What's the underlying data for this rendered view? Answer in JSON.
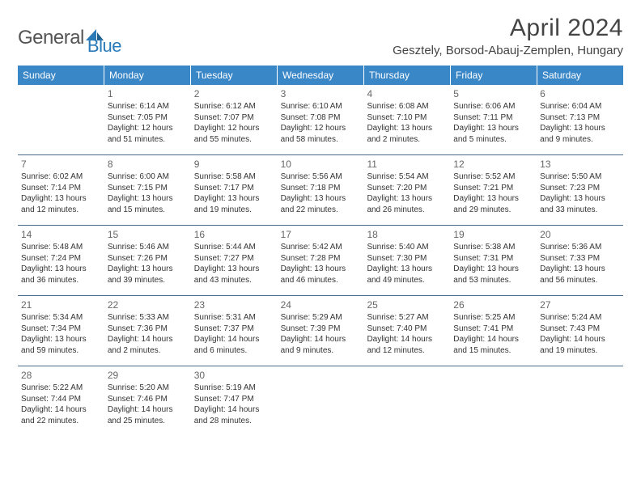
{
  "logo": {
    "part1": "General",
    "part2": "Blue"
  },
  "header": {
    "title": "April 2024",
    "location": "Gesztely, Borsod-Abauj-Zemplen, Hungary"
  },
  "colors": {
    "header_bg": "#3a87c8",
    "header_fg": "#ffffff",
    "rule": "#4a6a8a",
    "logo_blue": "#2a7ab8",
    "logo_gray": "#555555",
    "text": "#333333"
  },
  "dayNames": [
    "Sunday",
    "Monday",
    "Tuesday",
    "Wednesday",
    "Thursday",
    "Friday",
    "Saturday"
  ],
  "weeks": [
    [
      null,
      {
        "n": "1",
        "sr": "Sunrise: 6:14 AM",
        "ss": "Sunset: 7:05 PM",
        "d1": "Daylight: 12 hours",
        "d2": "and 51 minutes."
      },
      {
        "n": "2",
        "sr": "Sunrise: 6:12 AM",
        "ss": "Sunset: 7:07 PM",
        "d1": "Daylight: 12 hours",
        "d2": "and 55 minutes."
      },
      {
        "n": "3",
        "sr": "Sunrise: 6:10 AM",
        "ss": "Sunset: 7:08 PM",
        "d1": "Daylight: 12 hours",
        "d2": "and 58 minutes."
      },
      {
        "n": "4",
        "sr": "Sunrise: 6:08 AM",
        "ss": "Sunset: 7:10 PM",
        "d1": "Daylight: 13 hours",
        "d2": "and 2 minutes."
      },
      {
        "n": "5",
        "sr": "Sunrise: 6:06 AM",
        "ss": "Sunset: 7:11 PM",
        "d1": "Daylight: 13 hours",
        "d2": "and 5 minutes."
      },
      {
        "n": "6",
        "sr": "Sunrise: 6:04 AM",
        "ss": "Sunset: 7:13 PM",
        "d1": "Daylight: 13 hours",
        "d2": "and 9 minutes."
      }
    ],
    [
      {
        "n": "7",
        "sr": "Sunrise: 6:02 AM",
        "ss": "Sunset: 7:14 PM",
        "d1": "Daylight: 13 hours",
        "d2": "and 12 minutes."
      },
      {
        "n": "8",
        "sr": "Sunrise: 6:00 AM",
        "ss": "Sunset: 7:15 PM",
        "d1": "Daylight: 13 hours",
        "d2": "and 15 minutes."
      },
      {
        "n": "9",
        "sr": "Sunrise: 5:58 AM",
        "ss": "Sunset: 7:17 PM",
        "d1": "Daylight: 13 hours",
        "d2": "and 19 minutes."
      },
      {
        "n": "10",
        "sr": "Sunrise: 5:56 AM",
        "ss": "Sunset: 7:18 PM",
        "d1": "Daylight: 13 hours",
        "d2": "and 22 minutes."
      },
      {
        "n": "11",
        "sr": "Sunrise: 5:54 AM",
        "ss": "Sunset: 7:20 PM",
        "d1": "Daylight: 13 hours",
        "d2": "and 26 minutes."
      },
      {
        "n": "12",
        "sr": "Sunrise: 5:52 AM",
        "ss": "Sunset: 7:21 PM",
        "d1": "Daylight: 13 hours",
        "d2": "and 29 minutes."
      },
      {
        "n": "13",
        "sr": "Sunrise: 5:50 AM",
        "ss": "Sunset: 7:23 PM",
        "d1": "Daylight: 13 hours",
        "d2": "and 33 minutes."
      }
    ],
    [
      {
        "n": "14",
        "sr": "Sunrise: 5:48 AM",
        "ss": "Sunset: 7:24 PM",
        "d1": "Daylight: 13 hours",
        "d2": "and 36 minutes."
      },
      {
        "n": "15",
        "sr": "Sunrise: 5:46 AM",
        "ss": "Sunset: 7:26 PM",
        "d1": "Daylight: 13 hours",
        "d2": "and 39 minutes."
      },
      {
        "n": "16",
        "sr": "Sunrise: 5:44 AM",
        "ss": "Sunset: 7:27 PM",
        "d1": "Daylight: 13 hours",
        "d2": "and 43 minutes."
      },
      {
        "n": "17",
        "sr": "Sunrise: 5:42 AM",
        "ss": "Sunset: 7:28 PM",
        "d1": "Daylight: 13 hours",
        "d2": "and 46 minutes."
      },
      {
        "n": "18",
        "sr": "Sunrise: 5:40 AM",
        "ss": "Sunset: 7:30 PM",
        "d1": "Daylight: 13 hours",
        "d2": "and 49 minutes."
      },
      {
        "n": "19",
        "sr": "Sunrise: 5:38 AM",
        "ss": "Sunset: 7:31 PM",
        "d1": "Daylight: 13 hours",
        "d2": "and 53 minutes."
      },
      {
        "n": "20",
        "sr": "Sunrise: 5:36 AM",
        "ss": "Sunset: 7:33 PM",
        "d1": "Daylight: 13 hours",
        "d2": "and 56 minutes."
      }
    ],
    [
      {
        "n": "21",
        "sr": "Sunrise: 5:34 AM",
        "ss": "Sunset: 7:34 PM",
        "d1": "Daylight: 13 hours",
        "d2": "and 59 minutes."
      },
      {
        "n": "22",
        "sr": "Sunrise: 5:33 AM",
        "ss": "Sunset: 7:36 PM",
        "d1": "Daylight: 14 hours",
        "d2": "and 2 minutes."
      },
      {
        "n": "23",
        "sr": "Sunrise: 5:31 AM",
        "ss": "Sunset: 7:37 PM",
        "d1": "Daylight: 14 hours",
        "d2": "and 6 minutes."
      },
      {
        "n": "24",
        "sr": "Sunrise: 5:29 AM",
        "ss": "Sunset: 7:39 PM",
        "d1": "Daylight: 14 hours",
        "d2": "and 9 minutes."
      },
      {
        "n": "25",
        "sr": "Sunrise: 5:27 AM",
        "ss": "Sunset: 7:40 PM",
        "d1": "Daylight: 14 hours",
        "d2": "and 12 minutes."
      },
      {
        "n": "26",
        "sr": "Sunrise: 5:25 AM",
        "ss": "Sunset: 7:41 PM",
        "d1": "Daylight: 14 hours",
        "d2": "and 15 minutes."
      },
      {
        "n": "27",
        "sr": "Sunrise: 5:24 AM",
        "ss": "Sunset: 7:43 PM",
        "d1": "Daylight: 14 hours",
        "d2": "and 19 minutes."
      }
    ],
    [
      {
        "n": "28",
        "sr": "Sunrise: 5:22 AM",
        "ss": "Sunset: 7:44 PM",
        "d1": "Daylight: 14 hours",
        "d2": "and 22 minutes."
      },
      {
        "n": "29",
        "sr": "Sunrise: 5:20 AM",
        "ss": "Sunset: 7:46 PM",
        "d1": "Daylight: 14 hours",
        "d2": "and 25 minutes."
      },
      {
        "n": "30",
        "sr": "Sunrise: 5:19 AM",
        "ss": "Sunset: 7:47 PM",
        "d1": "Daylight: 14 hours",
        "d2": "and 28 minutes."
      },
      null,
      null,
      null,
      null
    ]
  ]
}
